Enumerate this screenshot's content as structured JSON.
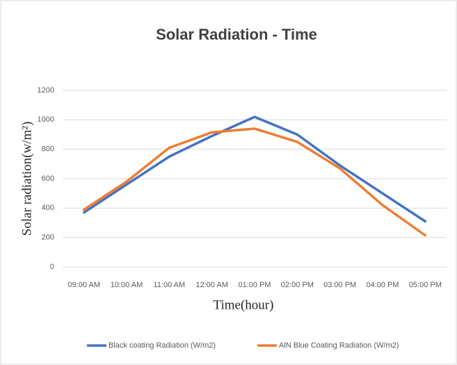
{
  "chart_data": {
    "type": "line",
    "title": "Solar Radiation - Time",
    "x_label": "Time(hour)",
    "y_label": "Solar radiation(w/m²)",
    "categories": [
      "09:00 AM",
      "10:00 AM",
      "11:00 AM",
      "12:00 AM",
      "01:00 PM",
      "02:00 PM",
      "03:00 PM",
      "04:00 PM",
      "05:00 PM"
    ],
    "series": [
      {
        "name": "Black coating Radiation (W/m2)",
        "color": "#4472c4",
        "values": [
          370,
          560,
          750,
          890,
          1020,
          900,
          690,
          500,
          310
        ]
      },
      {
        "name": "AlN Blue Coating Radiation (W/m2)",
        "color": "#ed7d31",
        "values": [
          390,
          580,
          810,
          915,
          940,
          850,
          670,
          420,
          215
        ]
      }
    ],
    "ylim": [
      0,
      1200
    ],
    "yticks": [
      0,
      200,
      400,
      600,
      800,
      1000,
      1200
    ],
    "grid": true,
    "legend": "bottom"
  }
}
